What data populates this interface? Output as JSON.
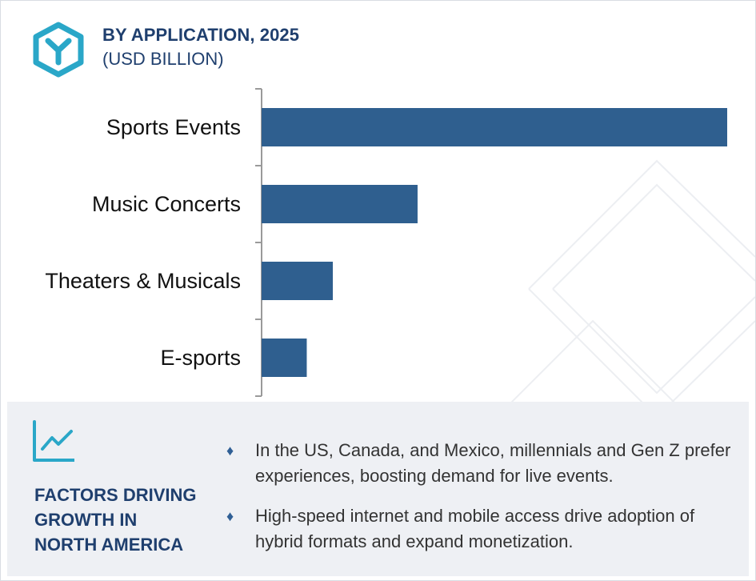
{
  "header": {
    "title": "BY APPLICATION, 2025",
    "subtitle": "(USD BILLION)",
    "logo_icon": "hexagon-y-logo-icon",
    "accent_color": "#2aa7c8",
    "title_color": "#1f3f6e"
  },
  "chart_data": {
    "type": "bar",
    "orientation": "horizontal",
    "categories": [
      "Sports Events",
      "Music Concerts",
      "Theaters & Musicals",
      "E-sports"
    ],
    "values": [
      100,
      33.5,
      15.3,
      9.7
    ],
    "bar_color": "#2f5f8f",
    "title": "BY APPLICATION, 2025",
    "xlabel": "",
    "ylabel": "",
    "grid": false,
    "legend": "none"
  },
  "factors": {
    "icon": "line-chart-icon",
    "title_lines": [
      "FACTORS DRIVING",
      "GROWTH IN",
      "NORTH AMERICA"
    ],
    "bullet_glyph": "♦",
    "items": [
      {
        "text": "In the US, Canada, and Mexico, millennials and Gen Z prefer experiences, boosting demand for live events."
      },
      {
        "text": "High-speed internet and mobile access drive adoption of hybrid formats and expand monetization."
      }
    ],
    "panel_color": "#eef0f4"
  }
}
